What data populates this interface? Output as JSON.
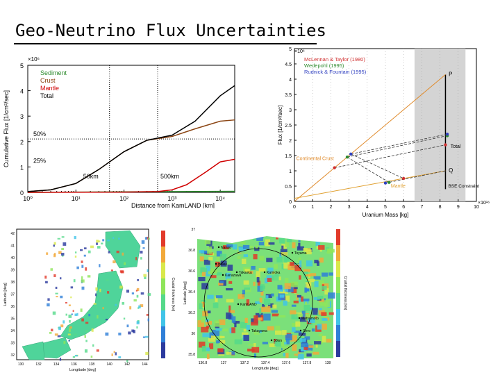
{
  "title": "Geo-Neutrino Flux Uncertainties",
  "chart_data": [
    {
      "type": "line",
      "xlabel": "Distance from KamLAND [km]",
      "ylabel": "Cumulative Flux [1/cm²/sec]",
      "y_multiplier": "×10⁶",
      "x_scale": "log",
      "x_ticks": [
        "10⁰",
        "10¹",
        "10²",
        "10³",
        "10⁴"
      ],
      "y_ticks": [
        "0",
        "1",
        "2",
        "3",
        "4",
        "5"
      ],
      "xlim": [
        1,
        20000
      ],
      "ylim": [
        0,
        5
      ],
      "legend": [
        "Sediment",
        "Crust",
        "Mantle",
        "Total"
      ],
      "legend_position": "top-left",
      "annotations": [
        "50%",
        "25%",
        "50km",
        "500km"
      ],
      "series": [
        {
          "name": "Sediment",
          "color": "#2e8b2e",
          "x": [
            1,
            10,
            100,
            1000,
            20000
          ],
          "y": [
            0,
            0.01,
            0.02,
            0.03,
            0.04
          ]
        },
        {
          "name": "Crust",
          "color": "#8b4513",
          "x": [
            1,
            3,
            10,
            30,
            100,
            300,
            1000,
            3000,
            10000,
            20000
          ],
          "y": [
            0.03,
            0.1,
            0.35,
            0.9,
            1.6,
            2.05,
            2.2,
            2.5,
            2.8,
            2.85
          ]
        },
        {
          "name": "Mantle",
          "color": "#d00000",
          "x": [
            1,
            100,
            500,
            1000,
            2000,
            5000,
            10000,
            20000
          ],
          "y": [
            0,
            0.01,
            0.03,
            0.1,
            0.3,
            0.8,
            1.2,
            1.3
          ]
        },
        {
          "name": "Total",
          "color": "#000000",
          "x": [
            1,
            3,
            10,
            30,
            100,
            300,
            1000,
            3000,
            10000,
            20000
          ],
          "y": [
            0.03,
            0.1,
            0.35,
            0.9,
            1.6,
            2.05,
            2.25,
            2.8,
            3.8,
            4.2
          ]
        }
      ]
    },
    {
      "type": "scatter",
      "xlabel": "Uranium Mass [kg]",
      "ylabel": "Flux [1/cm²/sec]",
      "y_multiplier": "×10⁶",
      "x_multiplier": "×10¹⁶",
      "x_ticks": [
        "0",
        "1",
        "2",
        "3",
        "4",
        "5",
        "6",
        "7",
        "8",
        "9",
        "10"
      ],
      "y_ticks": [
        "0",
        "0.5",
        "1",
        "1.5",
        "2",
        "2.5",
        "3",
        "3.5",
        "4",
        "4.5",
        "5"
      ],
      "xlim": [
        0,
        10
      ],
      "ylim": [
        0,
        5
      ],
      "legend": [
        "McLennan & Taylor (1980)",
        "Wedepohl (1995)",
        "Rudnick & Fountain (1995)"
      ],
      "legend_colors": [
        "#d03030",
        "#2e8b2e",
        "#3040c0"
      ],
      "labels": [
        "P",
        "Total",
        "Q",
        "Continental Crust",
        "Mantle",
        "BSE Constraint"
      ],
      "shaded_region": [
        6.6,
        9.4
      ],
      "bse_line_x": 8.3,
      "points": [
        {
          "x": 2.2,
          "y": 1.1,
          "color": "#d03030"
        },
        {
          "x": 2.9,
          "y": 1.45,
          "color": "#2e8b2e"
        },
        {
          "x": 3.1,
          "y": 1.55,
          "color": "#3040c0"
        },
        {
          "x": 5.0,
          "y": 0.6,
          "color": "#3040c0"
        },
        {
          "x": 5.2,
          "y": 0.62,
          "color": "#2e8b2e"
        },
        {
          "x": 6.0,
          "y": 0.75,
          "color": "#d03030"
        },
        {
          "x": 8.3,
          "y": 1.85,
          "color": "#d03030"
        },
        {
          "x": 8.4,
          "y": 2.15,
          "color": "#2e8b2e"
        },
        {
          "x": 8.4,
          "y": 2.2,
          "color": "#3040c0"
        }
      ]
    }
  ],
  "maps": {
    "left": {
      "ylabel": "Latitude [deg]",
      "xlabel": "Longitude [deg]",
      "y_ticks": [
        "42",
        "41",
        "40",
        "39",
        "38",
        "37",
        "36",
        "35",
        "34",
        "33",
        "32"
      ],
      "x_ticks": [
        "130",
        "132",
        "134",
        "136",
        "138",
        "140",
        "142",
        "144"
      ],
      "colorbar_label": "Crustal thickness [km]"
    },
    "right": {
      "ylabel": "Latitude [deg]",
      "xlabel": "Longitude [deg]",
      "y_ticks": [
        "37",
        "36.8",
        "36.6",
        "36.4",
        "36.2",
        "36",
        "35.8"
      ],
      "x_ticks": [
        "136.8",
        "137",
        "137.2",
        "137.4",
        "137.6",
        "137.8",
        "138"
      ],
      "colorbar_label": "Crustal thickness [km]",
      "places": [
        "Nanao",
        "Toyama",
        "Kanazawa",
        "Takaoka",
        "Kamioka",
        "KamLAND",
        "Takayama",
        "Hakui",
        "Matsumoto",
        "Gero",
        "50km"
      ]
    }
  }
}
